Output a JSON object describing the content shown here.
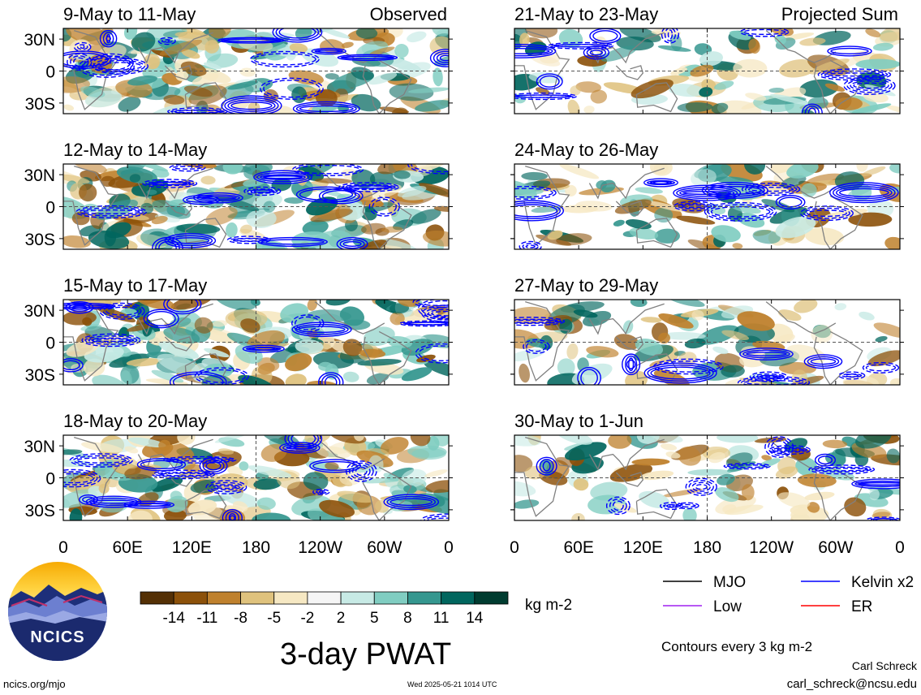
{
  "figure": {
    "title": "3-day PWAT",
    "site": "ncics.org/mjo",
    "timestamp": "Wed 2025-05-21 1014 UTC",
    "author": "Carl Schreck",
    "email": "carl_schreck@ncsu.edu",
    "contour_note": "Contours every 3 kg m-2",
    "logo_text": "NCICS"
  },
  "columns": {
    "left_header": "Observed",
    "right_header": "Projected Sum"
  },
  "colorbar": {
    "unit": "kg m-2",
    "tick_labels": [
      "-14",
      "-11",
      "-8",
      "-5",
      "-2",
      "2",
      "5",
      "8",
      "11",
      "14"
    ],
    "colors": [
      "#543005",
      "#8c510a",
      "#bf812d",
      "#dfc27d",
      "#f6e8c3",
      "#f5f5f5",
      "#c7eae5",
      "#80cdc1",
      "#35978f",
      "#01665e",
      "#003c30"
    ]
  },
  "legend": [
    {
      "label": "MJO",
      "color": "#000000"
    },
    {
      "label": "Kelvin x2",
      "color": "#0000ff"
    },
    {
      "label": "Low",
      "color": "#a020f0"
    },
    {
      "label": "ER",
      "color": "#ff0000"
    }
  ],
  "chart_data": {
    "type": "heatmap",
    "variable": "3-day PWAT anomaly",
    "panels": [
      {
        "column": "Observed",
        "period": "9-May to 11-May"
      },
      {
        "column": "Observed",
        "period": "12-May to 14-May"
      },
      {
        "column": "Observed",
        "period": "15-May to 17-May"
      },
      {
        "column": "Observed",
        "period": "18-May to 20-May"
      },
      {
        "column": "Projected Sum",
        "period": "21-May to 23-May"
      },
      {
        "column": "Projected Sum",
        "period": "24-May to 26-May"
      },
      {
        "column": "Projected Sum",
        "period": "27-May to 29-May"
      },
      {
        "column": "Projected Sum",
        "period": "30-May to 1-Jun"
      }
    ],
    "y_ticks": [
      "30N",
      "0",
      "30S"
    ],
    "x_ticks": [
      "0",
      "60E",
      "120E",
      "180",
      "120W",
      "60W",
      "0"
    ],
    "lon_range": [
      0,
      360
    ],
    "lat_range": [
      -40,
      40
    ],
    "grid": "dashed at equator and 180"
  }
}
